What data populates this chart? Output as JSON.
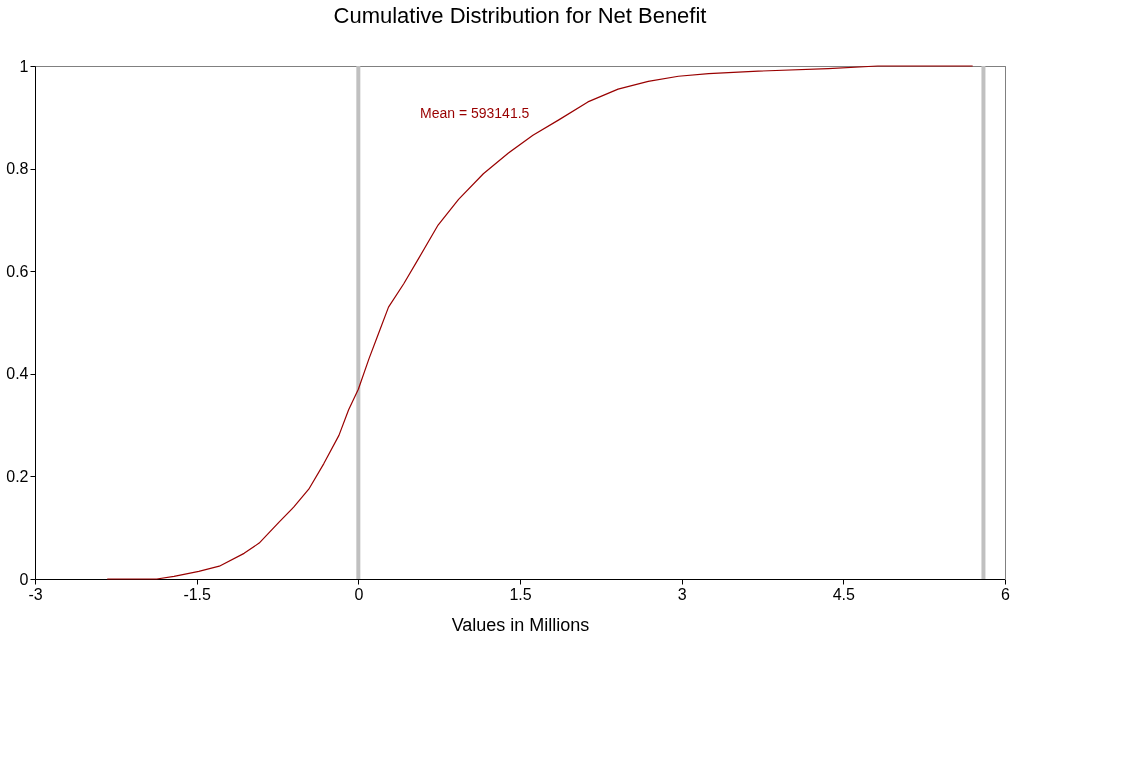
{
  "chart_data": {
    "type": "line",
    "title": "Cumulative Distribution for Net Benefit",
    "xlabel": "Values in Millions",
    "x": [
      -2.33,
      -1.87,
      -1.71,
      -1.48,
      -1.29,
      -1.06,
      -0.92,
      -0.74,
      -0.6,
      -0.46,
      -0.32,
      -0.18,
      -0.09,
      0,
      0.1,
      0.19,
      0.28,
      0.42,
      0.56,
      0.74,
      0.93,
      1.16,
      1.39,
      1.62,
      1.86,
      2.13,
      2.41,
      2.69,
      2.97,
      3.25,
      3.71,
      4.36,
      4.82,
      5.7
    ],
    "series": [
      {
        "color": "#990000",
        "values": [
          0,
          0,
          0.005,
          0.015,
          0.025,
          0.05,
          0.07,
          0.11,
          0.14,
          0.175,
          0.225,
          0.28,
          0.33,
          0.37,
          0.43,
          0.48,
          0.53,
          0.575,
          0.625,
          0.69,
          0.74,
          0.79,
          0.83,
          0.865,
          0.895,
          0.93,
          0.955,
          0.97,
          0.98,
          0.985,
          0.99,
          0.995,
          1,
          1
        ]
      }
    ],
    "xlim": [
      -3,
      6
    ],
    "xticks": [
      -3,
      -1.5,
      0,
      1.5,
      3,
      4.5,
      6
    ],
    "ylim": [
      0,
      1
    ],
    "yticks": [
      0,
      0.2,
      0.4,
      0.6,
      0.8,
      1
    ],
    "grid": false,
    "legend": false,
    "marker": "none",
    "line_style": "solid",
    "ref_lines": [
      {
        "axis": "x",
        "value": 0,
        "color": "#c0c0c0"
      },
      {
        "axis": "x",
        "value": 5.8,
        "color": "#c0c0c0"
      }
    ],
    "annotations": [
      "Mean = 593141.5"
    ]
  }
}
